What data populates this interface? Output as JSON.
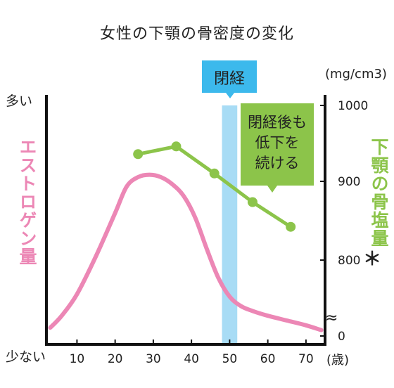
{
  "chart_data": {
    "type": "line",
    "title": "女性の下顎の骨密度の変化",
    "x_ticks": [
      "10",
      "20",
      "30",
      "40",
      "50",
      "60",
      "70"
    ],
    "x_unit": "(歳)",
    "xlim": [
      2,
      75
    ],
    "left_axis": {
      "label": "エストロゲン量",
      "top_label": "多い",
      "bottom_label": "少ない"
    },
    "right_axis": {
      "label": "下顎の骨塩量",
      "asterisk": "＊",
      "unit": "(mg/cm3)",
      "ticks": [
        "1000",
        "900",
        "800",
        "0"
      ],
      "ylim": [
        750,
        1000
      ],
      "break": "≈"
    },
    "menopause": {
      "label": "閉経",
      "x_range": [
        48,
        52
      ]
    },
    "annotation": [
      "閉経後も",
      "低下を",
      "続ける"
    ],
    "colors": {
      "estrogen": "#ec87b5",
      "bone": "#8cc44a",
      "menopause_band": "#a8dcf5",
      "menopause_box": "#3cb9ec",
      "note_box": "#8cc44a"
    },
    "series": [
      {
        "name": "エストロゲン量",
        "color": "#ec87b5",
        "x": [
          3,
          6,
          10,
          15,
          20,
          23,
          26,
          29,
          32,
          35,
          38,
          41,
          44,
          47,
          50,
          53,
          56,
          60,
          65,
          70,
          74
        ],
        "y": [
          0.07,
          0.12,
          0.21,
          0.37,
          0.55,
          0.66,
          0.7,
          0.71,
          0.7,
          0.67,
          0.62,
          0.53,
          0.4,
          0.28,
          0.2,
          0.16,
          0.14,
          0.12,
          0.1,
          0.08,
          0.06
        ]
      },
      {
        "name": "下顎の骨塩量",
        "color": "#8cc44a",
        "x": [
          26,
          36,
          46,
          56,
          66
        ],
        "y": [
          937,
          947,
          912,
          875,
          843
        ]
      }
    ]
  }
}
